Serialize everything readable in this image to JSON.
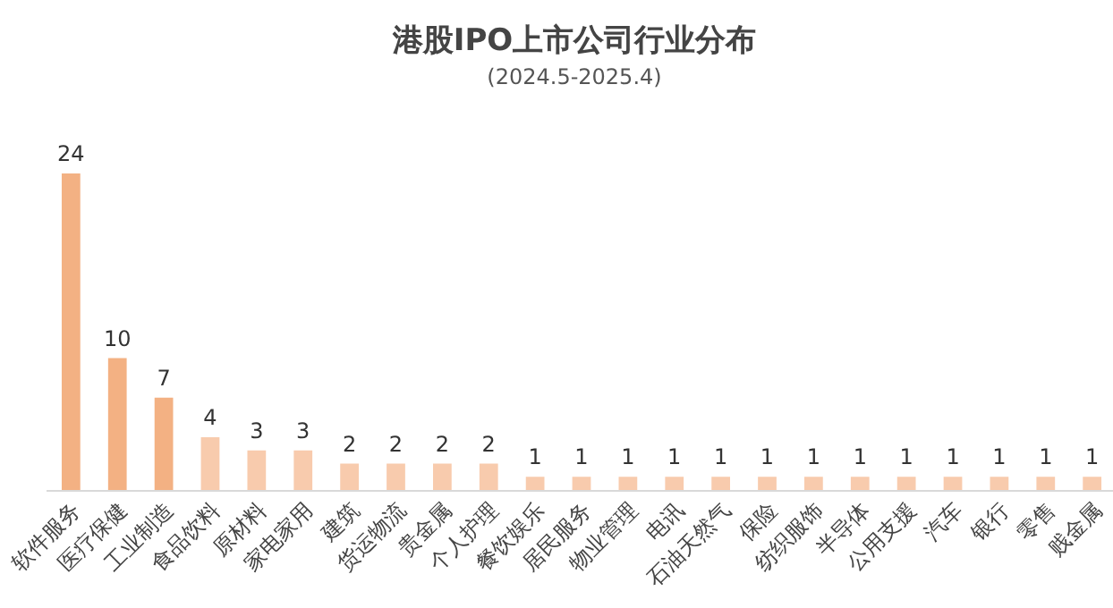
{
  "chart_data": {
    "type": "bar",
    "title": "港股IPO上市公司行业分布",
    "subtitle": "(2024.5-2025.4)",
    "categories": [
      "软件服务",
      "医疗保健",
      "工业制造",
      "食品饮料",
      "原材料",
      "家电家用",
      "建筑",
      "货运物流",
      "贵金属",
      "个人护理",
      "餐饮娱乐",
      "居民服务",
      "物业管理",
      "电讯",
      "石油天然气",
      "保险",
      "纺织服饰",
      "半导体",
      "公用支援",
      "汽车",
      "银行",
      "零售",
      "贱金属"
    ],
    "values": [
      24,
      10,
      7,
      4,
      3,
      3,
      2,
      2,
      2,
      2,
      1,
      1,
      1,
      1,
      1,
      1,
      1,
      1,
      1,
      1,
      1,
      1,
      1
    ],
    "colors": [
      "#f3b183",
      "#f3b183",
      "#f3b183",
      "#f8cbad",
      "#f8cbad",
      "#f8cbad",
      "#f8cbad",
      "#f8cbad",
      "#f8cbad",
      "#f8cbad",
      "#f8cbad",
      "#f8cbad",
      "#f8cbad",
      "#f8cbad",
      "#f8cbad",
      "#f8cbad",
      "#f8cbad",
      "#f8cbad",
      "#f8cbad",
      "#f8cbad",
      "#f8cbad",
      "#f8cbad",
      "#f8cbad"
    ],
    "data_labels": true
  }
}
